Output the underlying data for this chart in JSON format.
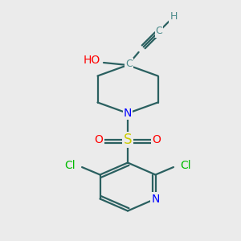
{
  "bg_color": "#ebebeb",
  "atom_colors": {
    "C": "#4a8a8a",
    "N": "#0000ff",
    "O": "#ff0000",
    "S": "#cccc00",
    "Cl": "#00bb00",
    "H": "#4a8a8a"
  },
  "bond_color": "#2a6060",
  "font_size": 10,
  "bond_width": 1.6
}
